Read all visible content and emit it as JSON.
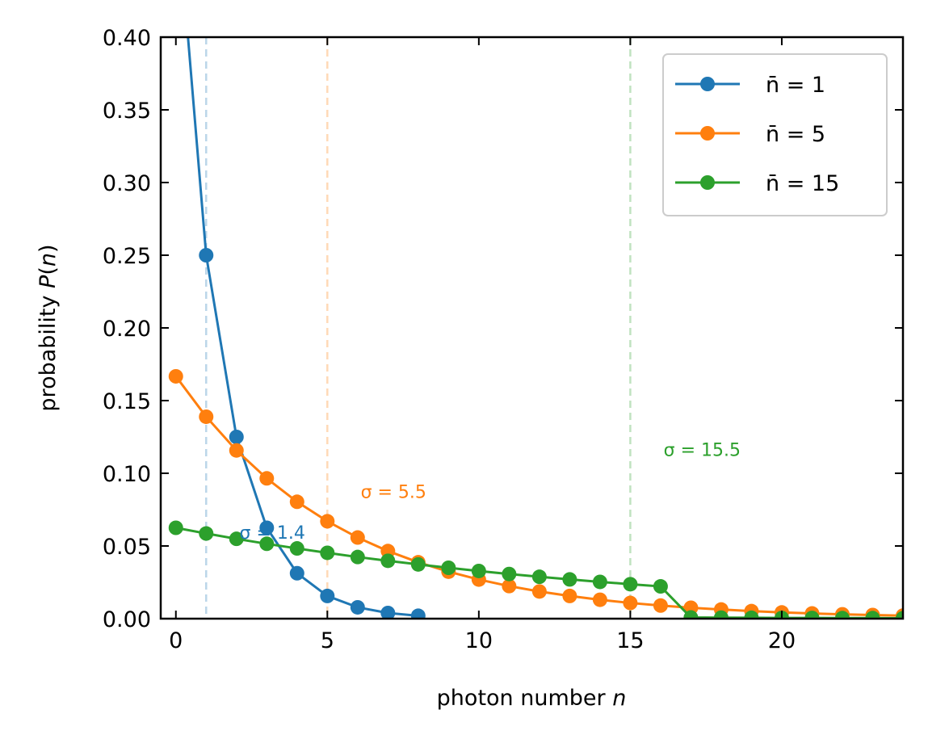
{
  "chart_data": {
    "type": "line",
    "xlabel": "photon number n",
    "ylabel": "probability P(n)",
    "xlim": [
      -0.5,
      24
    ],
    "ylim": [
      0,
      0.4
    ],
    "xticks": [
      0,
      5,
      10,
      15,
      20
    ],
    "xtick_labels": [
      "0",
      "5",
      "10",
      "15",
      "20"
    ],
    "yticks": [
      0,
      0.05,
      0.1,
      0.15,
      0.2,
      0.25,
      0.3,
      0.35,
      0.4
    ],
    "ytick_labels": [
      "0.00",
      "0.05",
      "0.10",
      "0.15",
      "0.20",
      "0.25",
      "0.30",
      "0.35",
      "0.40"
    ],
    "grid": false,
    "legend_position": "top-right",
    "series": [
      {
        "name": "n̄ = 1",
        "color": "#1f77b4",
        "x": [
          0,
          1,
          2,
          3,
          4,
          5,
          6,
          7,
          8
        ],
        "y": [
          0.5,
          0.25,
          0.125,
          0.0625,
          0.03125,
          0.0156,
          0.0078,
          0.0039,
          0.002
        ]
      },
      {
        "name": "n̄ = 5",
        "color": "#ff7f0e",
        "x": [
          0,
          1,
          2,
          3,
          4,
          5,
          6,
          7,
          8,
          9,
          10,
          11,
          12,
          13,
          14,
          15,
          16,
          17,
          18,
          19,
          20,
          21,
          22,
          23,
          24
        ],
        "y": [
          0.1667,
          0.1389,
          0.1157,
          0.0965,
          0.0804,
          0.067,
          0.0558,
          0.0465,
          0.0388,
          0.0323,
          0.0269,
          0.0224,
          0.0187,
          0.0156,
          0.013,
          0.0108,
          0.009,
          0.0075,
          0.0063,
          0.0052,
          0.0043,
          0.0036,
          0.003,
          0.0025,
          0.0021
        ]
      },
      {
        "name": "n̄ = 15",
        "color": "#2ca02c",
        "x": [
          0,
          1,
          2,
          3,
          4,
          5,
          6,
          7,
          8,
          9,
          10,
          11,
          12,
          13,
          14,
          15,
          16,
          17,
          18,
          19,
          20,
          21,
          22,
          23,
          24
        ],
        "y": [
          0.0625,
          0.0586,
          0.0549,
          0.0515,
          0.0483,
          0.0453,
          0.0424,
          0.0398,
          0.0373,
          0.035,
          0.0328,
          0.0307,
          0.0288,
          0.027,
          0.0253,
          0.0237,
          0.0222,
          0.0008,
          0.0007,
          0.0006,
          0.0005,
          0.0005,
          0.0004,
          0.0004,
          0.0003
        ]
      }
    ],
    "vlines": [
      {
        "x": 1,
        "color": "#1f77b4"
      },
      {
        "x": 5,
        "color": "#ff7f0e"
      },
      {
        "x": 15,
        "color": "#2ca02c"
      }
    ],
    "annotations": [
      {
        "text": "σ = 1.4",
        "x": 2.1,
        "y": 0.055,
        "color": "#1f77b4"
      },
      {
        "text": "σ = 5.5",
        "x": 6.1,
        "y": 0.083,
        "color": "#ff7f0e"
      },
      {
        "text": "σ = 15.5",
        "x": 16.1,
        "y": 0.112,
        "color": "#2ca02c"
      }
    ]
  }
}
